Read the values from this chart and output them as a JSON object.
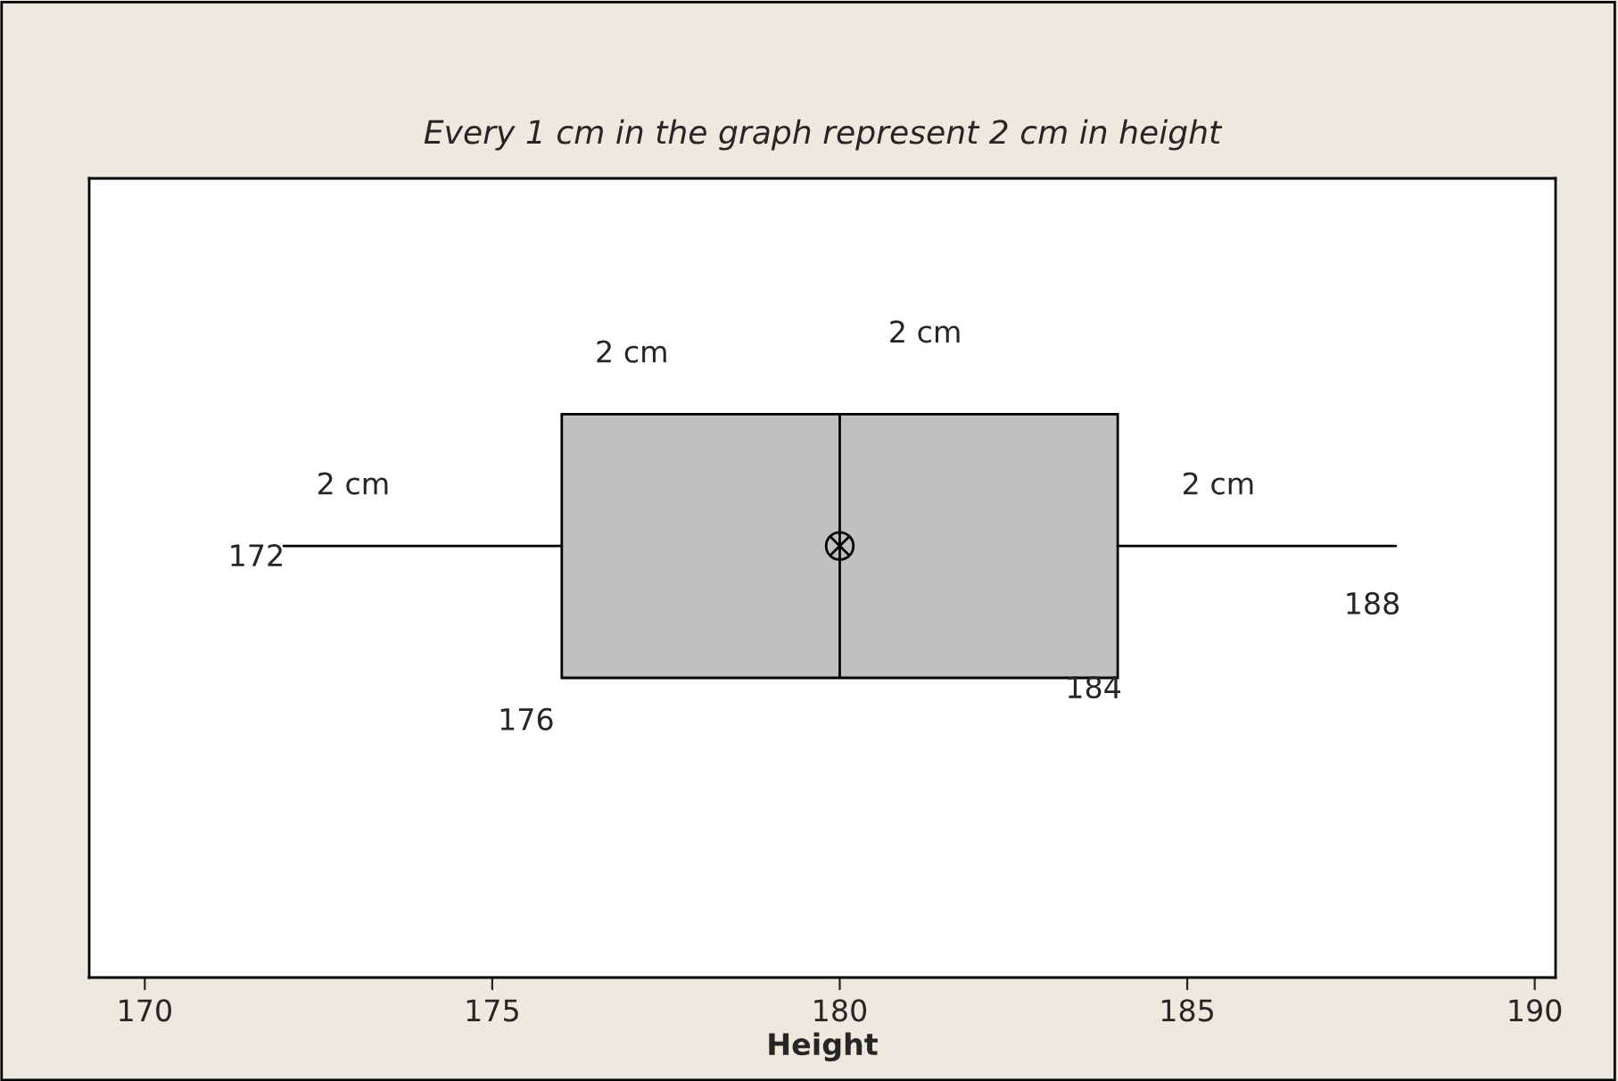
{
  "chart_data": {
    "type": "box",
    "orientation": "horizontal",
    "title": "Every 1 cm in the graph represent 2 cm in height",
    "xlabel": "Height",
    "categories": [
      null
    ],
    "boxes": [
      {
        "low": 172,
        "q1": 176,
        "median": 180,
        "q3": 184,
        "high": 188,
        "mean": 180
      }
    ],
    "color": "#c0c0c0",
    "xlim": [
      169.2,
      190.3
    ],
    "xticks": [
      170,
      175,
      180,
      185,
      190
    ],
    "tick_labels": "x",
    "grid": false,
    "annotations": [
      "2 cm",
      "2 cm",
      "2 cm",
      "2 cm",
      "172",
      "176",
      "184",
      "188"
    ]
  }
}
